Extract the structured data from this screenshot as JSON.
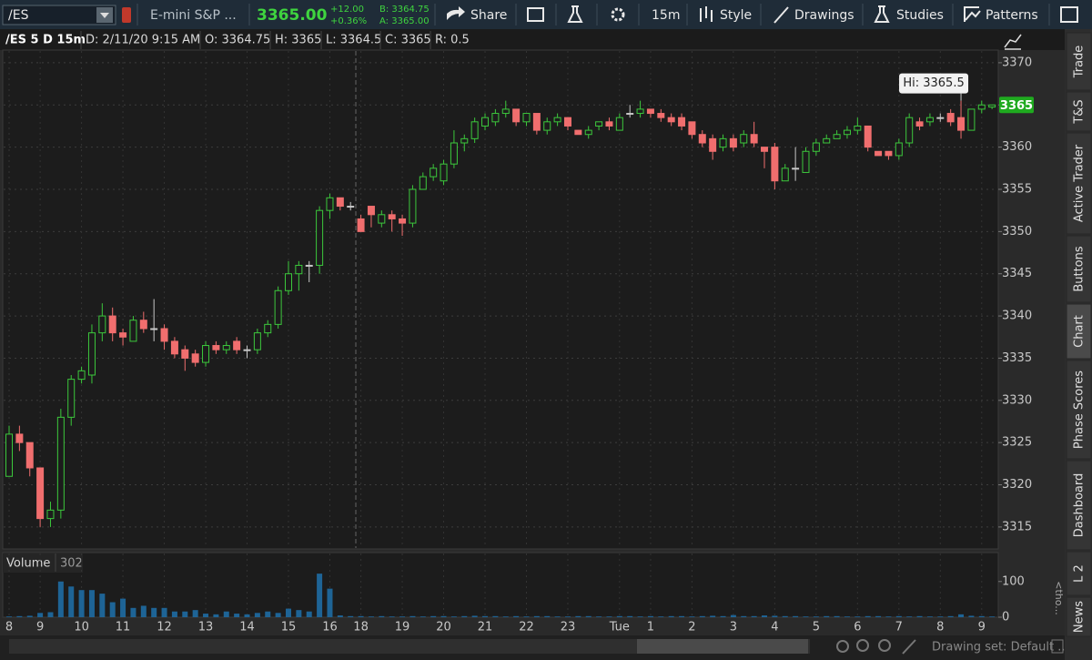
{
  "toolbar": {
    "symbol": "/ES",
    "description": "E-mini S&P ...",
    "last": "3365.00",
    "net_change": "+12.00",
    "percent_change": "+0.36%",
    "bid": "B: 3364.75",
    "ask": "A: 3365.00",
    "share": "Share",
    "timeframe": "15m",
    "style": "Style",
    "drawings": "Drawings",
    "studies": "Studies",
    "patterns": "Patterns"
  },
  "info_bar": {
    "label": "/ES 5 D 15m",
    "date": "D: 2/11/20 9:15 AM",
    "open": "O: 3364.75",
    "high": "H: 3365",
    "low": "L: 3364.5",
    "close": "C: 3365",
    "range": "R: 0.5"
  },
  "chart_data": [
    {
      "type": "candlestick",
      "up_color": "#3cc83c",
      "down_color": "#f06e6e",
      "flat_color": "#c8c8c8",
      "grid": true,
      "ylim": [
        3312.4,
        3371.5
      ],
      "yticks": [
        3315,
        3320,
        3325,
        3330,
        3335,
        3340,
        3345,
        3350,
        3355,
        3360,
        3365,
        3370
      ],
      "last_price": 3365,
      "last_price_color": "#1faa1f",
      "annotation": "Hi: 3365.5",
      "categories": [
        "8",
        null,
        null,
        "9",
        null,
        null,
        null,
        "10",
        null,
        null,
        null,
        "11",
        null,
        null,
        null,
        "12",
        null,
        null,
        null,
        "13",
        null,
        null,
        null,
        "14",
        null,
        null,
        null,
        "15",
        null,
        null,
        null,
        "16",
        null,
        null,
        "18",
        null,
        null,
        null,
        "19",
        null,
        null,
        null,
        "20",
        null,
        null,
        null,
        "21",
        null,
        null,
        null,
        "22",
        null,
        null,
        null,
        "23",
        null,
        null,
        null,
        null,
        "Tue",
        null,
        null,
        "1",
        null,
        null,
        null,
        "2",
        null,
        null,
        null,
        "3",
        null,
        null,
        null,
        "4",
        null,
        null,
        null,
        "5",
        null,
        null,
        null,
        "6",
        null,
        null,
        null,
        "7",
        null,
        null,
        null,
        "8",
        null,
        null,
        null,
        "9",
        null
      ],
      "open": [
        3321,
        3326,
        3325,
        3322,
        3316,
        3317,
        3328,
        3332.5,
        3333,
        3338,
        3340,
        3338,
        3337,
        3339.5,
        3338.5,
        3338.5,
        3337,
        3336,
        3335.5,
        3334.5,
        3336.5,
        3336,
        3337,
        3336,
        3336,
        3338,
        3339,
        3343,
        3345,
        3346,
        3346,
        3352.5,
        3354,
        3353,
        3351.5,
        3353,
        3351,
        3352,
        3351.5,
        3351,
        3355,
        3356.5,
        3356,
        3358,
        3360.5,
        3361,
        3362.5,
        3363,
        3364,
        3364.5,
        3363,
        3364,
        3362,
        3363,
        3363.5,
        3362,
        3361.5,
        3362.5,
        3363,
        3362,
        3364,
        3364,
        3364.5,
        3364,
        3363.5,
        3363.5,
        3363,
        3361.5,
        3361,
        3360,
        3361,
        3360.5,
        3361.5,
        3360,
        3360,
        3356,
        3357.5,
        3357,
        3359.5,
        3360.5,
        3361,
        3361.5,
        3362,
        3362.5,
        3359.5,
        3359.5,
        3359,
        3360.5,
        3363,
        3363,
        3363.5,
        3364,
        3363.5,
        3362,
        3364.5,
        3364.75
      ],
      "high": [
        3327,
        3327,
        3325,
        3322,
        3318,
        3329,
        3333,
        3334,
        3339,
        3341.5,
        3341,
        3338.5,
        3340,
        3340.5,
        3342,
        3339,
        3337.5,
        3336.5,
        3336,
        3337,
        3337,
        3337,
        3337.5,
        3336.5,
        3338.5,
        3339.5,
        3343.5,
        3346.5,
        3346.5,
        3346.5,
        3353,
        3354.5,
        3354,
        3353.5,
        3352,
        3353,
        3352.5,
        3352.5,
        3352,
        3355.5,
        3357,
        3358,
        3358.5,
        3362,
        3361.5,
        3363.5,
        3364,
        3364.5,
        3365.5,
        3364.5,
        3364,
        3364,
        3363.5,
        3364,
        3363.5,
        3362,
        3362.5,
        3363,
        3363.5,
        3364,
        3365,
        3365.5,
        3364.5,
        3364.5,
        3364,
        3364,
        3363,
        3362,
        3361.5,
        3361.5,
        3361.5,
        3362,
        3363,
        3360,
        3360.5,
        3358,
        3360,
        3360,
        3361,
        3361.5,
        3362,
        3362.5,
        3363.5,
        3362.5,
        3359.5,
        3359.5,
        3361,
        3364,
        3363.5,
        3364,
        3364,
        3364.5,
        3365.5,
        3364.5,
        3365.5,
        3365
      ],
      "low": [
        3321,
        3324,
        3321,
        3315,
        3315,
        3316,
        3327,
        3332,
        3332,
        3337,
        3337,
        3336.5,
        3337,
        3338,
        3337,
        3336,
        3335,
        3333.5,
        3334,
        3334,
        3335.5,
        3335.5,
        3335.5,
        3335,
        3335.5,
        3337.5,
        3338.5,
        3342.5,
        3343,
        3344,
        3345,
        3351.5,
        3352.5,
        3352.5,
        3350,
        3350.5,
        3350.5,
        3350,
        3349.5,
        3350.5,
        3355,
        3356,
        3355.5,
        3357.5,
        3359.5,
        3360.5,
        3362,
        3362.5,
        3363.5,
        3362.5,
        3362.5,
        3361.5,
        3361.5,
        3362.5,
        3362,
        3361.5,
        3361,
        3362,
        3362,
        3362,
        3363.5,
        3363.5,
        3363.5,
        3363,
        3362.5,
        3362,
        3361,
        3360,
        3358.5,
        3359.5,
        3359.5,
        3360,
        3360,
        3357.5,
        3355,
        3356,
        3356,
        3357,
        3359,
        3360.5,
        3361,
        3361,
        3361.5,
        3359.5,
        3359,
        3358.5,
        3358.5,
        3360,
        3362,
        3362.5,
        3363,
        3362.5,
        3361,
        3362,
        3364,
        3364.5
      ],
      "close": [
        3326,
        3325,
        3322,
        3316,
        3317,
        3328,
        3332.5,
        3333.5,
        3338,
        3340,
        3338,
        3337.5,
        3339.5,
        3338.5,
        3338.5,
        3337,
        3335.5,
        3335,
        3334.5,
        3336.5,
        3336,
        3336.5,
        3336,
        3336,
        3338,
        3339,
        3343,
        3345,
        3346,
        3346,
        3352.5,
        3354,
        3353,
        3353,
        3350,
        3352,
        3352,
        3351.5,
        3351,
        3355,
        3356.5,
        3357.5,
        3358,
        3360.5,
        3361,
        3363,
        3363.5,
        3364,
        3364.5,
        3363,
        3364,
        3362,
        3363,
        3363.5,
        3362.5,
        3361.5,
        3362,
        3363,
        3362.5,
        3363.5,
        3364,
        3364.5,
        3364,
        3363.5,
        3363,
        3362.5,
        3361.5,
        3360.5,
        3359.5,
        3361,
        3360,
        3361.5,
        3360.5,
        3359.5,
        3356,
        3357.5,
        3357.5,
        3359.5,
        3360.5,
        3361,
        3361.5,
        3362,
        3362.5,
        3360,
        3359,
        3359,
        3360.5,
        3363.5,
        3362.5,
        3363.5,
        3363.5,
        3363,
        3362,
        3364.5,
        3365,
        3365
      ]
    },
    {
      "type": "bar",
      "title": "Volume",
      "current": 302,
      "units_label": "<tho...",
      "color": "#1e6496",
      "ylim": [
        0,
        181
      ],
      "yticks": [
        0,
        100
      ],
      "values": [
        2,
        3,
        4,
        12,
        14,
        100,
        86,
        76,
        76,
        66,
        42,
        52,
        26,
        32,
        26,
        26,
        16,
        16,
        20,
        10,
        8,
        16,
        10,
        8,
        12,
        16,
        12,
        24,
        20,
        16,
        122,
        80,
        5,
        3,
        3,
        2,
        3,
        2,
        2,
        3,
        2,
        3,
        3,
        2,
        3,
        4,
        3,
        3,
        2,
        3,
        2,
        3,
        3,
        2,
        2,
        3,
        3,
        2,
        2,
        3,
        3,
        2,
        3,
        2,
        3,
        3,
        2,
        3,
        4,
        3,
        6,
        3,
        3,
        5,
        4,
        3,
        3,
        2,
        2,
        3,
        3,
        2,
        2,
        3,
        3,
        2,
        3,
        2,
        3,
        2,
        2,
        3,
        8,
        4,
        3,
        2
      ]
    }
  ],
  "sidebar": {
    "tabs": [
      "Trade",
      "T&S",
      "Active Trader",
      "Buttons",
      "Chart",
      "Phase Scores",
      "Dashboard",
      "L 2",
      "News"
    ]
  },
  "footer": {
    "drawing_set": "Drawing set: Default ..."
  }
}
